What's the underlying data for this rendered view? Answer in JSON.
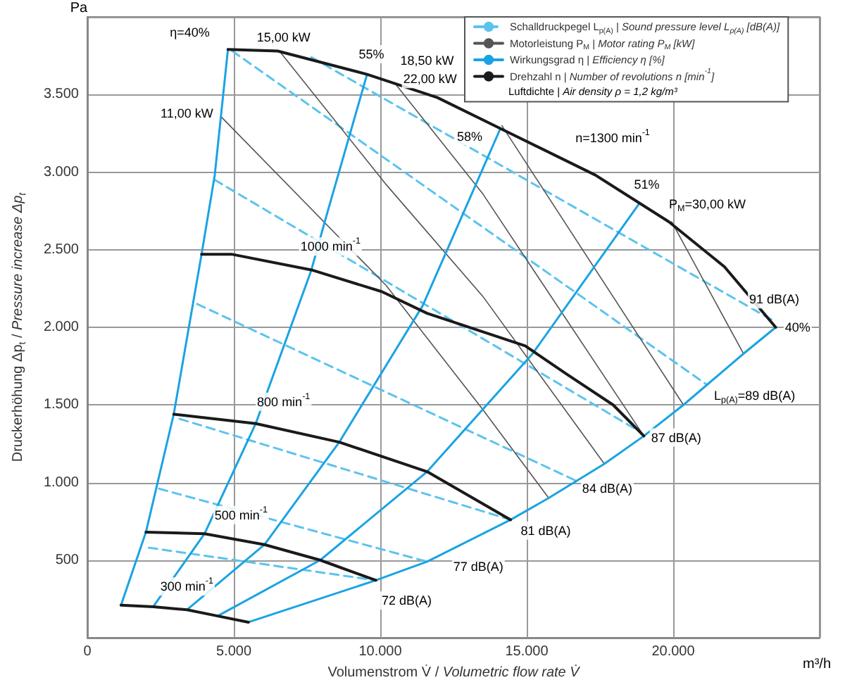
{
  "chart_data": {
    "type": "line",
    "xlabel": "Volumenstrom V̇ / Volumetric flow rate V̇",
    "ylabel": "Druckerhöhung Δp$_{t}$ / Pressure increase Δp$_{t}$",
    "xlim": [
      0,
      25000
    ],
    "ylim": [
      0,
      4000
    ],
    "xticks": [
      {
        "value": 0,
        "label": "0"
      },
      {
        "value": 5000,
        "label": "5.000"
      },
      {
        "value": 10000,
        "label": "10.000"
      },
      {
        "value": 15000,
        "label": "15.000"
      },
      {
        "value": 20000,
        "label": "20.000"
      }
    ],
    "yticks": [
      {
        "value": 500,
        "label": "500"
      },
      {
        "value": 1000,
        "label": "1.000"
      },
      {
        "value": 1500,
        "label": "1.500"
      },
      {
        "value": 2000,
        "label": "2.000"
      },
      {
        "value": 2500,
        "label": "2.500"
      },
      {
        "value": 3000,
        "label": "3.000"
      },
      {
        "value": 3500,
        "label": "3.500"
      }
    ],
    "grid": true,
    "legend": "top right",
    "marker": "none",
    "series": [
      {
        "name": "Schalldruckpegel L$_{p(A)}$ | Sound pressure level L$_{p(A)}$ [dB(A)]",
        "color": "#5cc3ee",
        "line_style": "dashed",
        "x": [
          2100,
          9850
        ],
        "values": [
          580,
          370
        ]
      },
      {
        "color": "#5cc3ee",
        "line_style": "dashed",
        "x": [
          2450,
          11600
        ],
        "values": [
          960,
          490
        ]
      },
      {
        "color": "#5cc3ee",
        "line_style": "dashed",
        "x": [
          3150,
          14450
        ],
        "values": [
          1410,
          760
        ]
      },
      {
        "color": "#5cc3ee",
        "line_style": "dashed",
        "x": [
          3750,
          16700
        ],
        "values": [
          2150,
          1010
        ]
      },
      {
        "color": "#5cc3ee",
        "line_style": "dashed",
        "x": [
          4350,
          18750
        ],
        "values": [
          2950,
          1340
        ]
      },
      {
        "color": "#5cc3ee",
        "line_style": "dashed",
        "x": [
          4950,
          21150
        ],
        "values": [
          3780,
          1630
        ]
      },
      {
        "color": "#5cc3ee",
        "line_style": "dashed",
        "x": [
          7650,
          23350
        ],
        "values": [
          3740,
          2050
        ]
      },
      {
        "name": "Motorleistung P$_{M}$ | Motor rating P$_{M}$ [kW]",
        "color": "#555555",
        "line_style": "solid",
        "x": [
          4550,
          10200,
          13500,
          15750
        ],
        "values": [
          3360,
          2270,
          1470,
          900
        ]
      },
      {
        "color": "#555555",
        "line_style": "solid",
        "x": [
          6600,
          10200,
          13500,
          17650
        ],
        "values": [
          3770,
          2920,
          2200,
          1120
        ]
      },
      {
        "color": "#555555",
        "line_style": "solid",
        "x": [
          10550,
          13500,
          19000
        ],
        "values": [
          3560,
          2860,
          1300
        ]
      },
      {
        "color": "#555555",
        "line_style": "solid",
        "x": [
          14150,
          20350
        ],
        "values": [
          3300,
          1500
        ]
      },
      {
        "color": "#555555",
        "line_style": "solid",
        "x": [
          19950,
          22400
        ],
        "values": [
          2680,
          1830
        ]
      },
      {
        "name": "Wirkungsgrad η | Efficiency η [%]",
        "color": "#1aa3e3",
        "line_style": "solid",
        "x": [
          1150,
          2000,
          2950,
          3900,
          4350,
          4800
        ],
        "values": [
          210,
          680,
          1440,
          2470,
          2980,
          3790
        ]
      },
      {
        "color": "#1aa3e3",
        "line_style": "solid",
        "x": [
          2250,
          4000,
          5750,
          7650,
          8150,
          9550
        ],
        "values": [
          200,
          670,
          1380,
          2370,
          2710,
          3630
        ]
      },
      {
        "color": "#1aa3e3",
        "line_style": "solid",
        "x": [
          3400,
          6050,
          8600,
          11450,
          14100
        ],
        "values": [
          180,
          600,
          1260,
          2140,
          3280
        ]
      },
      {
        "color": "#1aa3e3",
        "line_style": "solid",
        "x": [
          4450,
          7950,
          11600,
          15200,
          18850
        ],
        "values": [
          140,
          500,
          1070,
          1830,
          2800
        ]
      },
      {
        "color": "#1aa3e3",
        "line_style": "solid",
        "x": [
          5500,
          9850,
          11600,
          14450,
          15750,
          16700,
          17650,
          19000,
          20350,
          22400,
          23500
        ],
        "values": [
          100,
          370,
          490,
          760,
          900,
          1010,
          1120,
          1300,
          1500,
          1830,
          2000
        ]
      },
      {
        "name": "Drehzahl n | Number of revolutions n [min$^{-1}$]",
        "color": "#1a1a1a",
        "line_style": "solid",
        "x": [
          1150,
          2250,
          3400,
          4450,
          5500
        ],
        "values": [
          210,
          200,
          180,
          140,
          100
        ]
      },
      {
        "color": "#1a1a1a",
        "line_style": "solid",
        "x": [
          2000,
          4000,
          6050,
          7950,
          9850
        ],
        "values": [
          680,
          670,
          600,
          500,
          370
        ]
      },
      {
        "color": "#1a1a1a",
        "line_style": "solid",
        "x": [
          2950,
          5750,
          8600,
          11600,
          14450
        ],
        "values": [
          1440,
          1380,
          1260,
          1070,
          760
        ]
      },
      {
        "color": "#1a1a1a",
        "line_style": "solid",
        "x": [
          3900,
          4950,
          7650,
          10050,
          11600,
          14950,
          16350,
          17950,
          19000
        ],
        "values": [
          2470,
          2470,
          2370,
          2230,
          2090,
          1880,
          1700,
          1500,
          1300
        ]
      },
      {
        "color": "#1a1a1a",
        "line_style": "solid",
        "x": [
          4800,
          6500,
          9550,
          11950,
          14000,
          17350,
          19850,
          21750,
          23500
        ],
        "values": [
          3790,
          3780,
          3630,
          3480,
          3290,
          2980,
          2680,
          2390,
          2000
        ]
      }
    ],
    "annotations": [
      "Pa",
      "m³/h",
      "Luftdichte | Air density ρ = 1,2 kg/m³",
      "n=1300 min$^{-1}$",
      "P$_{M}$=30,00 kW",
      "L$_{p(A)}$=89 dB(A)",
      {
        "text": "η=40%",
        "x": 3500,
        "y": 3900
      },
      {
        "text": "15,00 kW",
        "x": 6700,
        "y": 3870
      },
      {
        "text": "55%",
        "x": 9700,
        "y": 3760
      },
      {
        "text": "18,50 kW",
        "x": 11600,
        "y": 3720
      },
      {
        "text": "22,00 kW",
        "x": 11700,
        "y": 3600
      },
      {
        "text": "11,00 kW",
        "x": 3400,
        "y": 3380
      },
      {
        "text": "58%",
        "x": 13050,
        "y": 3230
      },
      {
        "text": "51%",
        "x": 19100,
        "y": 2920
      },
      {
        "text": "1000 min$^{-1}$",
        "x": 8300,
        "y": 2520
      },
      {
        "text": "91 dB(A)",
        "x": 23450,
        "y": 2180
      },
      {
        "text": "40%",
        "x": 24250,
        "y": 2000
      },
      {
        "text": "87 dB(A)",
        "x": 20100,
        "y": 1290
      },
      {
        "text": "800 min$^{-1}$",
        "x": 6700,
        "y": 1520
      },
      {
        "text": "84 dB(A)",
        "x": 17750,
        "y": 960
      },
      {
        "text": "81 dB(A)",
        "x": 15650,
        "y": 690
      },
      {
        "text": "500 min$^{-1}$",
        "x": 5250,
        "y": 790
      },
      {
        "text": "77 dB(A)",
        "x": 13350,
        "y": 460
      },
      {
        "text": "300 min$^{-1}$",
        "x": 3400,
        "y": 330
      },
      {
        "text": "72 dB(A)",
        "x": 10900,
        "y": 240
      }
    ]
  }
}
